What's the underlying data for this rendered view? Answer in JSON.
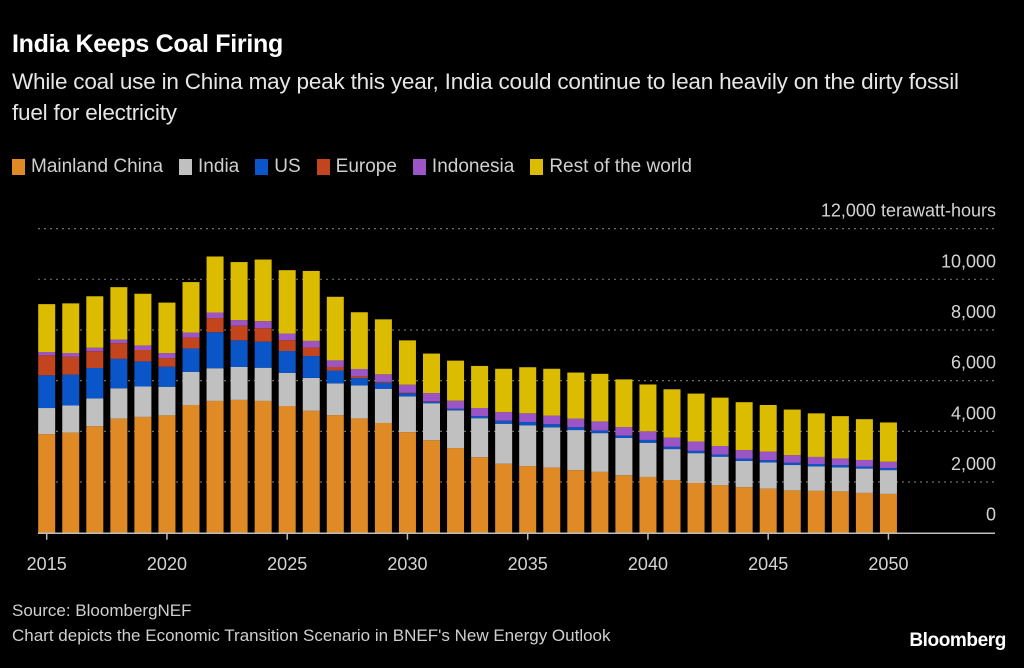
{
  "header": {
    "title": "India Keeps Coal Firing",
    "subtitle": "While coal use in China may peak this year, India could continue to lean heavily on the dirty fossil fuel for electricity"
  },
  "footer": {
    "source": "Source: BloombergNEF",
    "note": "Chart depicts the Economic Transition Scenario in BNEF's New Energy Outlook",
    "brand": "Bloomberg"
  },
  "chart_data": {
    "type": "bar",
    "stacked": true,
    "title": "India Keeps Coal Firing",
    "subtitle": "While coal use in China may peak this year, India could continue to lean heavily on the dirty fossil fuel for electricity",
    "xlabel": "",
    "ylabel": "terawatt-hours",
    "unit_label": "12,000 terawatt-hours",
    "ylim": [
      0,
      12000
    ],
    "yticks": [
      0,
      2000,
      4000,
      6000,
      8000,
      10000,
      12000
    ],
    "ytick_labels": [
      "0",
      "2,000",
      "4,000",
      "6,000",
      "8,000",
      "10,000",
      "12,000"
    ],
    "xticks": [
      2015,
      2020,
      2025,
      2030,
      2035,
      2040,
      2045,
      2050
    ],
    "xtick_labels": [
      "2015",
      "2020",
      "2025",
      "2030",
      "2035",
      "2040",
      "2045",
      "2050"
    ],
    "grid": true,
    "legend_position": "top-left",
    "categories": [
      2015,
      2016,
      2017,
      2018,
      2019,
      2020,
      2021,
      2022,
      2023,
      2024,
      2025,
      2026,
      2027,
      2028,
      2029,
      2030,
      2031,
      2032,
      2033,
      2034,
      2035,
      2036,
      2037,
      2038,
      2039,
      2040,
      2041,
      2042,
      2043,
      2044,
      2045,
      2046,
      2047,
      2048,
      2049,
      2050
    ],
    "series": [
      {
        "name": "Mainland China",
        "color": "#e08a26",
        "values": [
          3890,
          3950,
          4200,
          4500,
          4570,
          4630,
          5040,
          5200,
          5240,
          5200,
          5000,
          4810,
          4640,
          4510,
          4330,
          3970,
          3650,
          3340,
          2980,
          2720,
          2630,
          2570,
          2470,
          2400,
          2270,
          2200,
          2080,
          1960,
          1880,
          1800,
          1740,
          1670,
          1650,
          1630,
          1570,
          1530
        ]
      },
      {
        "name": "India",
        "color": "#c0c0c0",
        "values": [
          1030,
          1070,
          1100,
          1200,
          1200,
          1130,
          1310,
          1290,
          1300,
          1310,
          1310,
          1300,
          1250,
          1300,
          1350,
          1410,
          1460,
          1490,
          1540,
          1580,
          1610,
          1590,
          1580,
          1530,
          1470,
          1350,
          1220,
          1180,
          1120,
          1030,
          1030,
          1000,
          970,
          950,
          960,
          940
        ]
      },
      {
        "name": "US",
        "color": "#0a56c8",
        "values": [
          1290,
          1220,
          1200,
          1160,
          990,
          790,
          920,
          1420,
          1050,
          1030,
          860,
          860,
          510,
          290,
          240,
          120,
          60,
          60,
          80,
          120,
          130,
          120,
          110,
          100,
          90,
          110,
          90,
          90,
          80,
          90,
          90,
          90,
          90,
          90,
          80,
          80
        ]
      },
      {
        "name": "Europe",
        "color": "#c2451e",
        "values": [
          790,
          700,
          660,
          620,
          450,
          340,
          430,
          560,
          580,
          530,
          430,
          340,
          140,
          70,
          30,
          20,
          10,
          0,
          0,
          0,
          0,
          0,
          0,
          0,
          0,
          0,
          0,
          0,
          0,
          0,
          0,
          0,
          0,
          0,
          0,
          0
        ]
      },
      {
        "name": "Indonesia",
        "color": "#9b55c6",
        "values": [
          130,
          150,
          140,
          140,
          180,
          200,
          200,
          220,
          220,
          280,
          260,
          260,
          260,
          290,
          300,
          320,
          330,
          320,
          320,
          340,
          340,
          340,
          340,
          360,
          340,
          340,
          360,
          370,
          340,
          340,
          340,
          300,
          280,
          260,
          260,
          250
        ]
      },
      {
        "name": "Rest of the world",
        "color": "#dcbc00",
        "values": [
          1890,
          1960,
          2030,
          2070,
          2040,
          1990,
          1990,
          2210,
          2290,
          2430,
          2500,
          2760,
          2510,
          2240,
          2170,
          1750,
          1560,
          1580,
          1660,
          1710,
          1820,
          1850,
          1820,
          1880,
          1880,
          1850,
          1910,
          1890,
          1910,
          1890,
          1840,
          1800,
          1720,
          1670,
          1610,
          1550
        ]
      }
    ]
  }
}
